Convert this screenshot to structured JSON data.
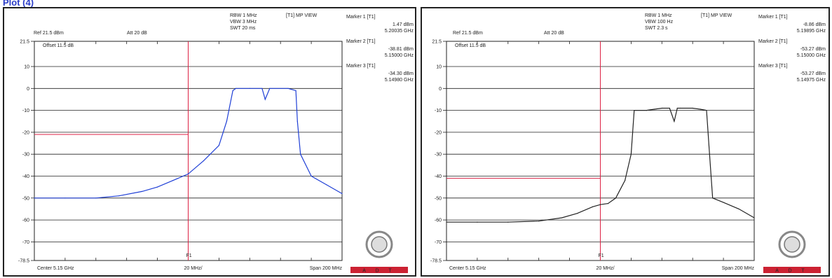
{
  "page": {
    "top_label": "Plot (4)"
  },
  "adt_logo": {
    "text": "A D T",
    "color": "#cc2233"
  },
  "colors": {
    "trace_left": "#1f3fd6",
    "trace_right": "#222222",
    "limit": "#dd2244",
    "grid": "#222222"
  },
  "chart_data": [
    {
      "type": "line",
      "header": {
        "rbw": "RBW 1 MHz",
        "vbw": "VBW 3 MHz",
        "swt": "SWT 20 ms",
        "mode": "[T1] MP VIEW",
        "ref": "Ref 21.5 dBm",
        "att": "Att  20 dB",
        "offset": "Offset 11.5 dB"
      },
      "markers": [
        {
          "label": "Marker 1 [T1]",
          "level": "1.47 dBm",
          "freq": "5.20035 GHz"
        },
        {
          "label": "Marker 2 [T1]",
          "level": "-38.81 dBm",
          "freq": "5.15000 GHz"
        },
        {
          "label": "Marker 3 [T1]",
          "level": "-34.30 dBm",
          "freq": "5.14980 GHz"
        }
      ],
      "footer": {
        "center": "Center 5.15 GHz",
        "div": "20 MHz/",
        "span": "Span 200 MHz"
      },
      "f_marker_label": "F1",
      "yticks": [
        "21.5",
        "10",
        "0",
        "-10",
        "-20",
        "-30",
        "-40",
        "-50",
        "-60",
        "-70",
        "-78.5"
      ],
      "ylim": [
        -78.5,
        21.5
      ],
      "xlim": [
        5.05,
        5.25
      ],
      "limit_line": {
        "y": -21,
        "x_end": 5.15
      },
      "f_line_x": 5.15,
      "series": [
        {
          "x": [
            5.05,
            5.07,
            5.09,
            5.105,
            5.12,
            5.13,
            5.14,
            5.15,
            5.16,
            5.17,
            5.175,
            5.179,
            5.181,
            5.19,
            5.198,
            5.2,
            5.203,
            5.215,
            5.22,
            5.221,
            5.223,
            5.23,
            5.24,
            5.25
          ],
          "y": [
            -50,
            -50,
            -50,
            -49,
            -47,
            -45,
            -42,
            -39,
            -33,
            -26,
            -15,
            -1,
            0,
            0,
            0,
            -5,
            0,
            0,
            -1,
            -15,
            -30,
            -40,
            -44,
            -48
          ]
        }
      ]
    },
    {
      "type": "line",
      "header": {
        "rbw": "RBW 1 MHz",
        "vbw": "VBW 100 Hz",
        "swt": "SWT 2.3 s",
        "mode": "[T1] MP VIEW",
        "ref": "Ref 21.5 dBm",
        "att": "Att  20 dB",
        "offset": "Offset 11.5 dB"
      },
      "markers": [
        {
          "label": "Marker 1 [T1]",
          "level": "-8.86 dBm",
          "freq": "5.19895 GHz"
        },
        {
          "label": "Marker 2 [T1]",
          "level": "-53.27 dBm",
          "freq": "5.15000 GHz"
        },
        {
          "label": "Marker 3 [T1]",
          "level": "-53.27 dBm",
          "freq": "5.14975 GHz"
        }
      ],
      "footer": {
        "center": "Center 5.15 GHz",
        "div": "20 MHz/",
        "span": "Span 200 MHz"
      },
      "f_marker_label": "F1",
      "yticks": [
        "21.5",
        "10",
        "0",
        "-10",
        "-20",
        "-30",
        "-40",
        "-50",
        "-60",
        "-70",
        "-78.5"
      ],
      "ylim": [
        -78.5,
        21.5
      ],
      "xlim": [
        5.05,
        5.25
      ],
      "limit_line": {
        "y": -41,
        "x_end": 5.15
      },
      "f_line_x": 5.15,
      "series": [
        {
          "x": [
            5.05,
            5.07,
            5.09,
            5.11,
            5.125,
            5.135,
            5.145,
            5.15,
            5.155,
            5.16,
            5.166,
            5.17,
            5.172,
            5.18,
            5.185,
            5.19,
            5.195,
            5.198,
            5.2,
            5.202,
            5.21,
            5.215,
            5.219,
            5.221,
            5.223,
            5.23,
            5.24,
            5.25
          ],
          "y": [
            -61,
            -61,
            -61,
            -60.5,
            -59,
            -57,
            -54,
            -53,
            -52.5,
            -50,
            -42,
            -30,
            -10,
            -10,
            -9.5,
            -9,
            -9,
            -15,
            -9,
            -9,
            -9,
            -9.5,
            -10,
            -30,
            -50,
            -52,
            -55,
            -59
          ]
        }
      ]
    }
  ]
}
